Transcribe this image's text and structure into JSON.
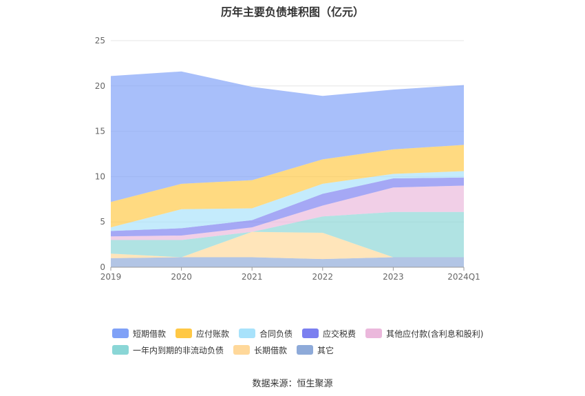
{
  "chart_data": {
    "type": "area",
    "stacked": true,
    "title": "历年主要负债堆积图（亿元）",
    "x": [
      "2019",
      "2020",
      "2021",
      "2022",
      "2023",
      "2024Q1"
    ],
    "yticks": [
      "0",
      "5",
      "10",
      "15",
      "20",
      "25"
    ],
    "ylim": [
      0,
      25
    ],
    "grid": true,
    "legend_position": "bottom",
    "series": [
      {
        "name": "其它",
        "color": "#8eaad9",
        "values": [
          1.0,
          1.1,
          1.1,
          0.9,
          1.1,
          1.1
        ]
      },
      {
        "name": "长期借款",
        "color": "#ffd89a",
        "values": [
          0.5,
          0.0,
          2.8,
          2.9,
          0.0,
          0.0
        ]
      },
      {
        "name": "一年内到期的非流动负债",
        "color": "#8ad6d6",
        "values": [
          1.5,
          1.9,
          0.0,
          1.8,
          5.0,
          5.0
        ]
      },
      {
        "name": "其他应付款(含利息和股利)",
        "color": "#ebb8dc",
        "values": [
          0.4,
          0.5,
          0.5,
          1.2,
          2.7,
          2.9
        ]
      },
      {
        "name": "应交税费",
        "color": "#7b7ff0",
        "values": [
          0.6,
          0.8,
          0.8,
          1.3,
          1.0,
          0.9
        ]
      },
      {
        "name": "合同负债",
        "color": "#a8e2fb",
        "values": [
          0.4,
          2.1,
          1.3,
          1.1,
          0.5,
          0.7
        ]
      },
      {
        "name": "应付账款",
        "color": "#ffc845",
        "values": [
          2.8,
          2.8,
          3.1,
          2.7,
          2.7,
          2.9
        ]
      },
      {
        "name": "短期借款",
        "color": "#7fa1f7",
        "values": [
          13.9,
          12.4,
          10.3,
          7.0,
          6.6,
          6.6
        ]
      }
    ],
    "source": "数据来源：恒生聚源"
  }
}
